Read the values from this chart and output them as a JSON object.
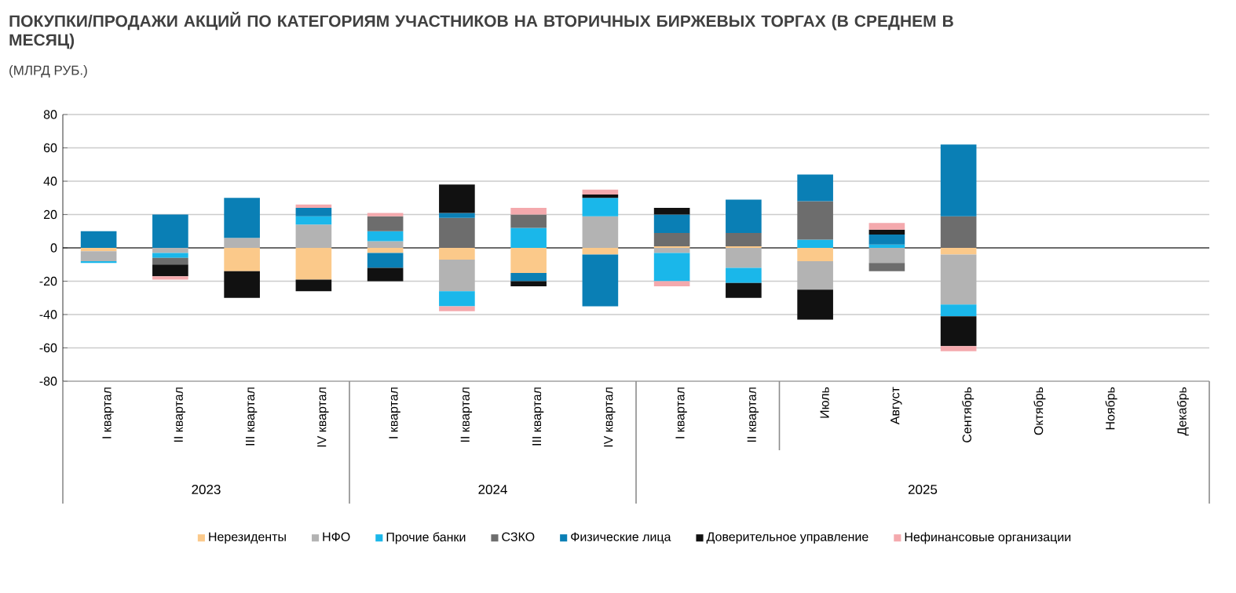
{
  "chart_data": {
    "type": "bar",
    "stacked": true,
    "title": "ПОКУПКИ/ПРОДАЖИ АКЦИЙ ПО КАТЕГОРИЯМ УЧАСТНИКОВ НА ВТОРИЧНЫХ БИРЖЕВЫХ ТОРГАХ (В СРЕДНЕМ В МЕСЯЦ)",
    "subtitle": "(МЛРД РУБ.)",
    "categories": [
      "I квартал",
      "II квартал",
      "III квартал",
      "IV квартал",
      "I квартал",
      "II квартал",
      "III квартал",
      "IV квартал",
      "I квартал",
      "II квартал",
      "Июль",
      "Август",
      "Сентябрь",
      "Октябрь",
      "Ноябрь",
      "Декабрь"
    ],
    "annotations": [
      "2023",
      "2024",
      "2025"
    ],
    "series": [
      {
        "name": "Нерезиденты",
        "color": "#fbc98a",
        "values": [
          -2,
          0,
          -14,
          -19,
          -3,
          -7,
          -15,
          -4,
          1,
          1,
          -8,
          0,
          -4,
          null,
          null,
          null
        ]
      },
      {
        "name": "НФО",
        "color": "#b3b3b3",
        "values": [
          -6,
          -3,
          6,
          14,
          4,
          -19,
          0,
          19,
          -3,
          -12,
          -17,
          -9,
          -30,
          null,
          null,
          null
        ]
      },
      {
        "name": "Прочие банки",
        "color": "#1ab7ea",
        "values": [
          -1,
          -3,
          0,
          5,
          6,
          -9,
          12,
          11,
          -17,
          -9,
          5,
          2,
          -7,
          null,
          null,
          null
        ]
      },
      {
        "name": "СЗКО",
        "color": "#6d6d6d",
        "values": [
          0,
          -4,
          0,
          0,
          9,
          18,
          8,
          0,
          8,
          8,
          23,
          -5,
          19,
          null,
          null,
          null
        ]
      },
      {
        "name": "Физические лица",
        "color": "#0a7fb5",
        "values": [
          10,
          20,
          24,
          5,
          -9,
          3,
          -5,
          -31,
          11,
          20,
          16,
          6,
          43,
          null,
          null,
          null
        ]
      },
      {
        "name": "Доверительное управление",
        "color": "#111111",
        "values": [
          0,
          -7,
          -16,
          -7,
          -8,
          17,
          -3,
          2,
          4,
          -9,
          -18,
          3,
          -18,
          null,
          null,
          null
        ]
      },
      {
        "name": "Нефинансовые организации",
        "color": "#f4a9ad",
        "values": [
          0,
          -2,
          0,
          2,
          2,
          -3,
          4,
          3,
          -3,
          0,
          0,
          4,
          -3,
          null,
          null,
          null
        ]
      }
    ],
    "ylim": [
      -80,
      80
    ],
    "yticks": [
      -80,
      -60,
      -40,
      -20,
      0,
      20,
      40,
      60,
      80
    ],
    "ref_lines": [
      {
        "axis": "y",
        "value": 0,
        "color": "#000000"
      }
    ],
    "grid": "y",
    "legend": "bottom"
  }
}
